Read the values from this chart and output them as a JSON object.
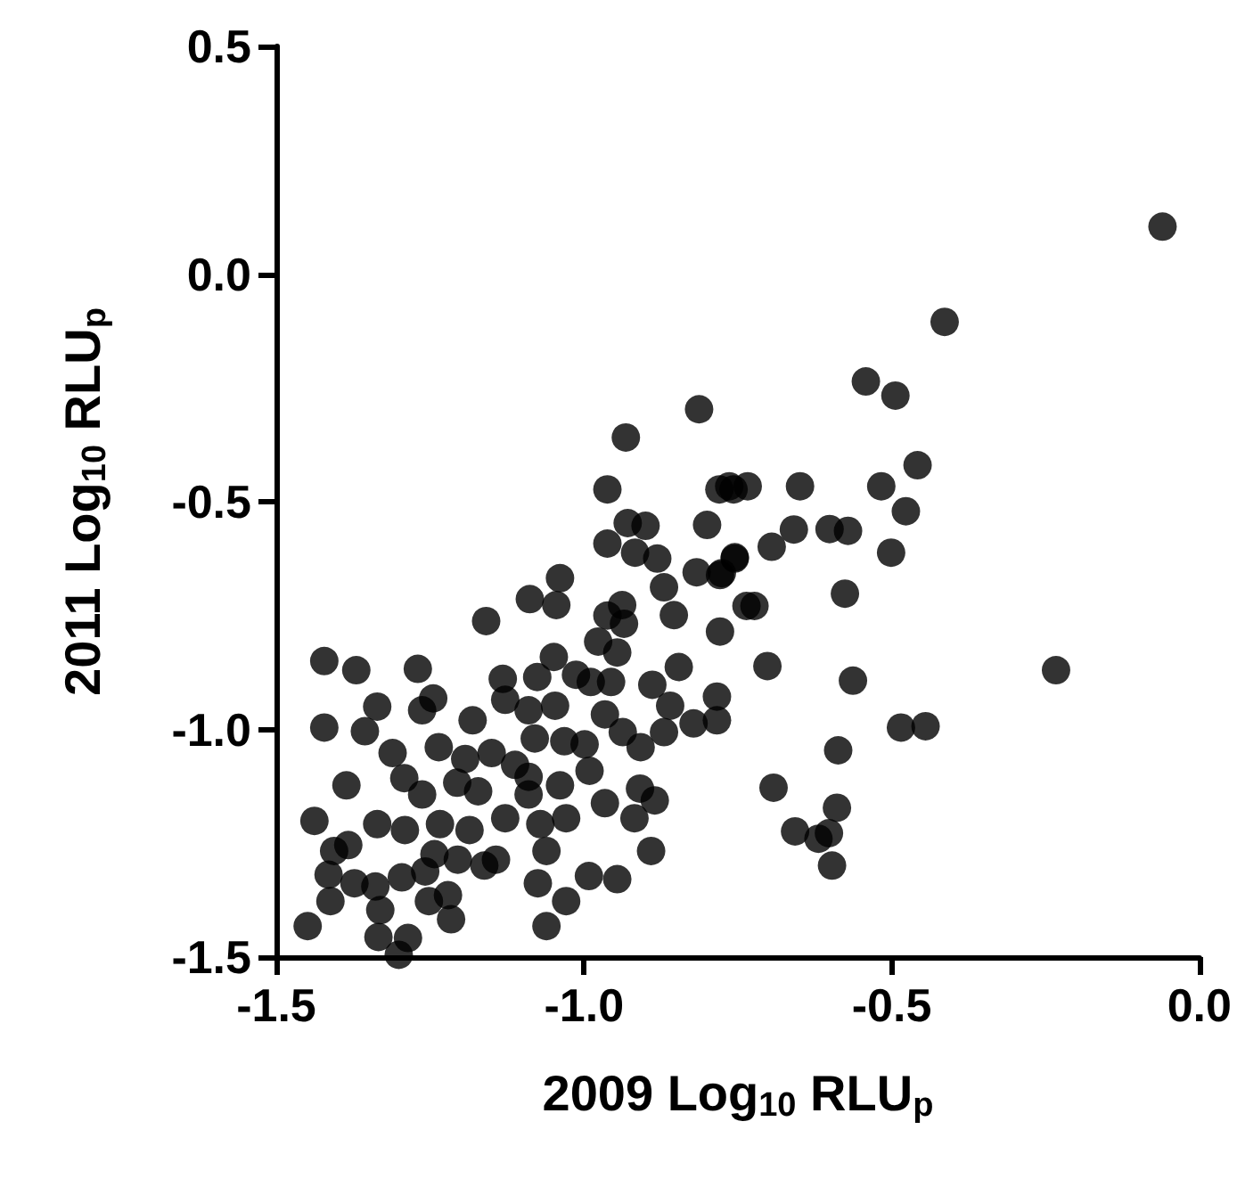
{
  "chart_data": {
    "type": "scatter",
    "xlabel": "2009 Log$_{10}$ RLU$_{p}$",
    "ylabel": "2011 Log$_{10}$ RLU$_{p}$",
    "color": "#000000",
    "marker": "circle",
    "grid": false,
    "xlim": [
      -1.5,
      0.0
    ],
    "xticks": [
      {
        "value": -1.5,
        "label": "-1.5"
      },
      {
        "value": -1.0,
        "label": "-1.0"
      },
      {
        "value": -0.5,
        "label": "-0.5"
      },
      {
        "value": 0.0,
        "label": "0.0"
      }
    ],
    "ylim": [
      -1.5,
      0.5
    ],
    "yticks": [
      {
        "value": -1.5,
        "label": "-1.5"
      },
      {
        "value": -1.0,
        "label": "-1.0"
      },
      {
        "value": -0.5,
        "label": "-0.5"
      },
      {
        "value": 0.0,
        "label": "0.0"
      },
      {
        "value": 0.5,
        "label": "0.5"
      }
    ],
    "x": [
      -0.813,
      -0.932,
      -0.962,
      -0.78,
      -0.757,
      -0.929,
      -0.9,
      -0.962,
      -0.8,
      -0.917,
      -0.881,
      -0.817,
      -0.779,
      -0.755,
      -0.87,
      -1.039,
      -1.088,
      -1.045,
      -1.159,
      -0.962,
      -0.938,
      -0.935,
      -0.854,
      -0.779,
      -0.736,
      -0.977,
      -0.946,
      -0.846,
      -1.049,
      -1.422,
      -1.37,
      -1.27,
      -1.132,
      -1.076,
      -1.013,
      -0.989,
      -0.956,
      -0.889,
      -0.86,
      -0.784,
      -0.822,
      -0.784,
      -1.245,
      -1.263,
      -1.336,
      -1.356,
      -1.422,
      -1.181,
      -1.128,
      -1.09,
      -1.047,
      -1.08,
      -1.032,
      -0.999,
      -0.966,
      -0.937,
      -0.908,
      -0.87,
      -1.236,
      -1.193,
      -1.15,
      -1.112,
      -1.311,
      -1.292,
      -1.386,
      -1.263,
      -1.206,
      -1.172,
      -1.09,
      -1.09,
      -1.039,
      -0.991,
      -0.966,
      -0.909,
      -0.885,
      -0.918,
      -1.029,
      -1.438,
      -1.336,
      -1.291,
      -1.234,
      -1.186,
      -1.128,
      -1.071,
      -1.061,
      -1.243,
      -1.205,
      -1.162,
      -1.143,
      -1.406,
      -1.383,
      -1.415,
      -1.373,
      -1.339,
      -1.296,
      -1.258,
      -0.891,
      -0.992,
      -0.946,
      -1.412,
      -1.331,
      -1.252,
      -1.221,
      -1.216,
      -1.075,
      -1.029,
      -1.449,
      -1.061,
      -1.334,
      -1.286,
      -1.301,
      -0.06,
      -0.414,
      -0.542,
      -0.494,
      -0.458,
      -0.517,
      -0.649,
      -0.764,
      -0.734,
      -0.477,
      -0.501,
      -0.659,
      -0.601,
      -0.571,
      -0.695,
      -0.755,
      -0.776,
      -0.576,
      -0.723,
      -0.702,
      -0.563,
      -0.233,
      -0.485,
      -0.445,
      -0.587,
      -0.692,
      -0.589,
      -0.657,
      -0.619,
      -0.602,
      -0.597
    ],
    "values": [
      -0.297,
      -0.359,
      -0.473,
      -0.473,
      -0.473,
      -0.547,
      -0.553,
      -0.592,
      -0.551,
      -0.612,
      -0.625,
      -0.655,
      -0.661,
      -0.622,
      -0.688,
      -0.668,
      -0.714,
      -0.727,
      -0.762,
      -0.75,
      -0.727,
      -0.768,
      -0.749,
      -0.785,
      -0.729,
      -0.807,
      -0.831,
      -0.863,
      -0.841,
      -0.85,
      -0.87,
      -0.867,
      -0.889,
      -0.885,
      -0.88,
      -0.896,
      -0.896,
      -0.902,
      -0.948,
      -0.928,
      -0.987,
      -0.98,
      -0.932,
      -0.958,
      -0.95,
      -1.004,
      -0.996,
      -0.98,
      -0.935,
      -0.958,
      -0.948,
      -1.02,
      -1.026,
      -1.033,
      -0.967,
      -1.006,
      -1.039,
      -1.006,
      -1.039,
      -1.065,
      -1.052,
      -1.078,
      -1.052,
      -1.107,
      -1.123,
      -1.143,
      -1.117,
      -1.136,
      -1.104,
      -1.143,
      -1.123,
      -1.091,
      -1.162,
      -1.13,
      -1.156,
      -1.195,
      -1.195,
      -1.201,
      -1.208,
      -1.221,
      -1.208,
      -1.221,
      -1.195,
      -1.208,
      -1.267,
      -1.274,
      -1.286,
      -1.299,
      -1.286,
      -1.267,
      -1.254,
      -1.319,
      -1.338,
      -1.345,
      -1.325,
      -1.312,
      -1.267,
      -1.322,
      -1.329,
      -1.377,
      -1.397,
      -1.377,
      -1.364,
      -1.417,
      -1.338,
      -1.377,
      -1.432,
      -1.432,
      -1.456,
      -1.458,
      -1.495,
      0.104,
      -0.105,
      -0.236,
      -0.267,
      -0.42,
      -0.466,
      -0.466,
      -0.466,
      -0.466,
      -0.521,
      -0.612,
      -0.561,
      -0.56,
      -0.564,
      -0.599,
      -0.625,
      -0.657,
      -0.702,
      -0.729,
      -0.861,
      -0.893,
      -0.87,
      -0.996,
      -0.993,
      -1.046,
      -1.128,
      -1.172,
      -1.224,
      -1.24,
      -1.228,
      -1.299
    ]
  }
}
